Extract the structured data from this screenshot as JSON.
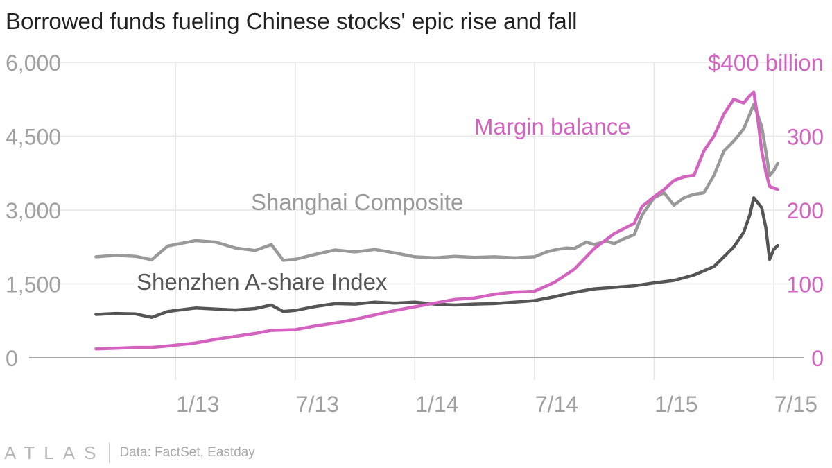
{
  "title": "Borrowed funds fueling Chinese stocks' epic rise and fall",
  "footer": {
    "logo": "ATLAS",
    "source": "Data: FactSet, Eastday"
  },
  "colors": {
    "shanghai": "#999999",
    "shenzhen": "#555555",
    "margin": "#d264bf",
    "axis_left": "#a0a0a0",
    "axis_right": "#d264bf",
    "grid": "#e6e6e6",
    "baseline": "#888888"
  },
  "chart_data": {
    "type": "line",
    "title": "Borrowed funds fueling Chinese stocks' epic rise and fall",
    "x_range": [
      2012.55,
      2015.625
    ],
    "x_ticks": [
      {
        "t": 2013.0,
        "label": "1/13"
      },
      {
        "t": 2013.5,
        "label": "7/13"
      },
      {
        "t": 2014.0,
        "label": "1/14"
      },
      {
        "t": 2014.5,
        "label": "7/14"
      },
      {
        "t": 2015.0,
        "label": "1/15"
      },
      {
        "t": 2015.5,
        "label": "7/15"
      }
    ],
    "y_left": {
      "range": [
        0,
        6000
      ],
      "ticks": [
        0,
        1500,
        3000,
        4500,
        6000
      ],
      "tick_labels": [
        "0",
        "1,500",
        "3,000",
        "4,500",
        "6,000"
      ]
    },
    "y_right": {
      "range": [
        0,
        400
      ],
      "ticks": [
        0,
        100,
        200,
        300,
        400
      ],
      "tick_labels": [
        "0",
        "100",
        "200",
        "300",
        "$400 billion"
      ]
    },
    "series": [
      {
        "name": "Shanghai Composite",
        "axis": "left",
        "x": [
          2012.667,
          2012.75,
          2012.833,
          2012.9,
          2012.967,
          2013.083,
          2013.167,
          2013.25,
          2013.333,
          2013.4,
          2013.45,
          2013.5,
          2013.583,
          2013.667,
          2013.75,
          2013.833,
          2013.917,
          2014.0,
          2014.083,
          2014.167,
          2014.25,
          2014.333,
          2014.417,
          2014.5,
          2014.55,
          2014.583,
          2014.633,
          2014.667,
          2014.717,
          2014.75,
          2014.8,
          2014.833,
          2014.875,
          2014.917,
          2014.95,
          2015.0,
          2015.042,
          2015.083,
          2015.125,
          2015.167,
          2015.208,
          2015.25,
          2015.292,
          2015.333,
          2015.375,
          2015.4,
          2015.417,
          2015.45,
          2015.467,
          2015.483,
          2015.5,
          2015.517
        ],
        "values": [
          2050,
          2080,
          2060,
          1990,
          2270,
          2380,
          2350,
          2230,
          2180,
          2300,
          1980,
          2000,
          2100,
          2190,
          2150,
          2200,
          2130,
          2050,
          2030,
          2060,
          2040,
          2050,
          2030,
          2050,
          2150,
          2190,
          2230,
          2220,
          2350,
          2300,
          2370,
          2320,
          2420,
          2500,
          2900,
          3250,
          3350,
          3100,
          3250,
          3320,
          3350,
          3700,
          4200,
          4400,
          4650,
          4950,
          5150,
          4700,
          4200,
          3700,
          3800,
          3950
        ]
      },
      {
        "name": "Shenzhen A-share Index",
        "axis": "left",
        "x": [
          2012.667,
          2012.75,
          2012.833,
          2012.9,
          2012.967,
          2013.083,
          2013.167,
          2013.25,
          2013.333,
          2013.4,
          2013.45,
          2013.5,
          2013.583,
          2013.667,
          2013.75,
          2013.833,
          2013.917,
          2014.0,
          2014.083,
          2014.167,
          2014.25,
          2014.333,
          2014.417,
          2014.5,
          2014.583,
          2014.667,
          2014.75,
          2014.833,
          2014.917,
          2015.0,
          2015.083,
          2015.167,
          2015.25,
          2015.292,
          2015.333,
          2015.375,
          2015.4,
          2015.417,
          2015.45,
          2015.467,
          2015.483,
          2015.5,
          2015.517
        ],
        "values": [
          880,
          900,
          890,
          820,
          940,
          1010,
          990,
          970,
          1000,
          1070,
          940,
          960,
          1040,
          1100,
          1090,
          1130,
          1110,
          1130,
          1090,
          1070,
          1090,
          1100,
          1130,
          1160,
          1240,
          1330,
          1400,
          1430,
          1460,
          1520,
          1570,
          1680,
          1850,
          2050,
          2250,
          2550,
          2900,
          3250,
          3050,
          2650,
          2000,
          2200,
          2280
        ]
      },
      {
        "name": "Margin balance",
        "axis": "right",
        "x": [
          2012.667,
          2012.75,
          2012.833,
          2012.9,
          2012.967,
          2013.083,
          2013.167,
          2013.25,
          2013.333,
          2013.4,
          2013.5,
          2013.583,
          2013.667,
          2013.75,
          2013.833,
          2013.917,
          2014.0,
          2014.083,
          2014.167,
          2014.25,
          2014.333,
          2014.417,
          2014.5,
          2014.583,
          2014.667,
          2014.75,
          2014.833,
          2014.875,
          2014.917,
          2014.95,
          2015.0,
          2015.042,
          2015.083,
          2015.125,
          2015.167,
          2015.208,
          2015.25,
          2015.292,
          2015.333,
          2015.375,
          2015.4,
          2015.417,
          2015.433,
          2015.45,
          2015.467,
          2015.483,
          2015.5,
          2015.517
        ],
        "values": [
          12,
          13,
          14,
          14,
          16,
          20,
          25,
          29,
          33,
          37,
          38,
          43,
          47,
          52,
          58,
          64,
          69,
          74,
          79,
          81,
          86,
          89,
          90,
          102,
          120,
          148,
          168,
          175,
          182,
          205,
          218,
          228,
          240,
          245,
          247,
          280,
          300,
          330,
          350,
          345,
          355,
          360,
          325,
          280,
          252,
          232,
          230,
          228
        ]
      }
    ],
    "annotations": [
      "Shanghai Composite",
      "Shenzhen A-share Index",
      "Margin balance"
    ]
  }
}
